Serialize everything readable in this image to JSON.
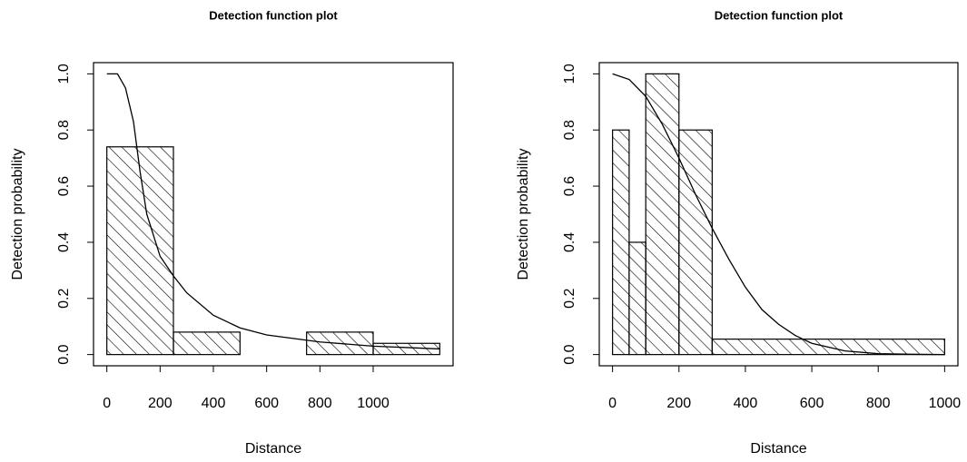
{
  "chart_data": [
    {
      "type": "histogram",
      "title": "Detection function plot",
      "xlabel": "Distance",
      "ylabel": "Detection probability",
      "bins": [
        0,
        250,
        500,
        750,
        1000,
        1250
      ],
      "values": [
        0.74,
        0.08,
        0,
        0.08,
        0.04
      ],
      "curve": {
        "x": [
          0,
          40,
          70,
          100,
          125,
          150,
          200,
          250,
          300,
          400,
          500,
          600,
          800,
          1000,
          1250
        ],
        "values": [
          1,
          1,
          0.95,
          0.83,
          0.65,
          0.5,
          0.35,
          0.28,
          0.22,
          0.14,
          0.095,
          0.07,
          0.045,
          0.03,
          0.02
        ]
      },
      "color": "#000000",
      "xlim": [
        -50,
        1300
      ],
      "xticks": [
        0,
        200,
        400,
        600,
        800,
        1000
      ],
      "ylim": [
        -0.04,
        1.04
      ],
      "yticks": [
        {
          "value": 0,
          "label": "0.0"
        },
        0.2,
        0.4,
        0.6,
        0.8,
        {
          "value": 1,
          "label": "1.0"
        }
      ]
    },
    {
      "type": "histogram",
      "title": "Detection function plot",
      "xlabel": "Distance",
      "ylabel": "Detection probability",
      "bins": [
        0,
        50,
        100,
        200,
        300,
        1000
      ],
      "values": [
        0.8,
        0.4,
        1.0,
        0.8,
        0.055
      ],
      "curve": {
        "x": [
          0,
          50,
          100,
          150,
          200,
          250,
          300,
          350,
          400,
          450,
          500,
          550,
          600,
          700,
          800,
          900,
          1000
        ],
        "values": [
          1,
          0.98,
          0.92,
          0.82,
          0.7,
          0.57,
          0.45,
          0.34,
          0.24,
          0.16,
          0.108,
          0.068,
          0.04,
          0.013,
          0.003,
          0.001,
          0
        ]
      },
      "color": "#000000",
      "xlim": [
        -40,
        1040
      ],
      "xticks": [
        0,
        200,
        400,
        600,
        800,
        1000
      ],
      "ylim": [
        -0.04,
        1.04
      ],
      "yticks": [
        {
          "value": 0,
          "label": "0.0"
        },
        0.2,
        0.4,
        0.6,
        0.8,
        {
          "value": 1,
          "label": "1.0"
        }
      ]
    }
  ]
}
